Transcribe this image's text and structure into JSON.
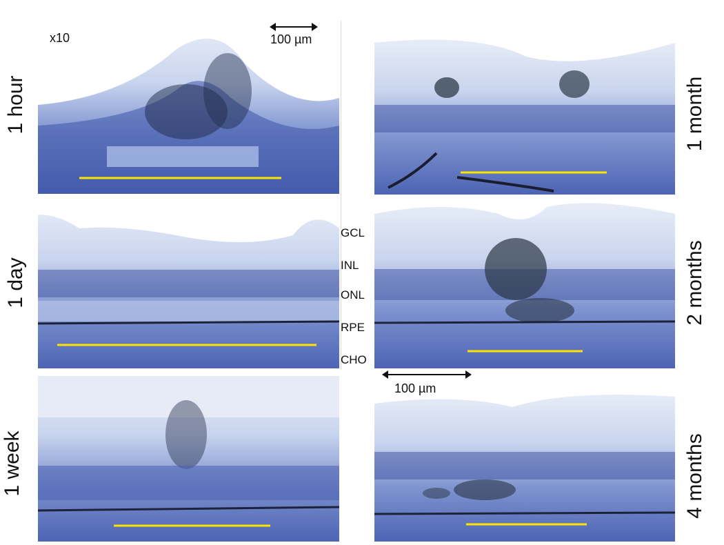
{
  "magnification": "x10",
  "scale_bar_top": "100 µm",
  "scale_bar_mid": "100 µm",
  "time_points": {
    "p1": "1 hour",
    "p2": "1 day",
    "p3": "1 week",
    "p4": "1 month",
    "p5": "2 months",
    "p6": "4 months"
  },
  "layers": [
    "GCL",
    "INL",
    "ONL",
    "RPE",
    "CHO"
  ],
  "colors": {
    "tissue_light": "#e9eef8",
    "tissue_dark": "#4d64b4",
    "nuclei": "#2b3e8c",
    "pigment": "#2e3a4a",
    "measurement_line": "#ffe400"
  },
  "icons": {
    "scale": "double-arrow-icon"
  }
}
